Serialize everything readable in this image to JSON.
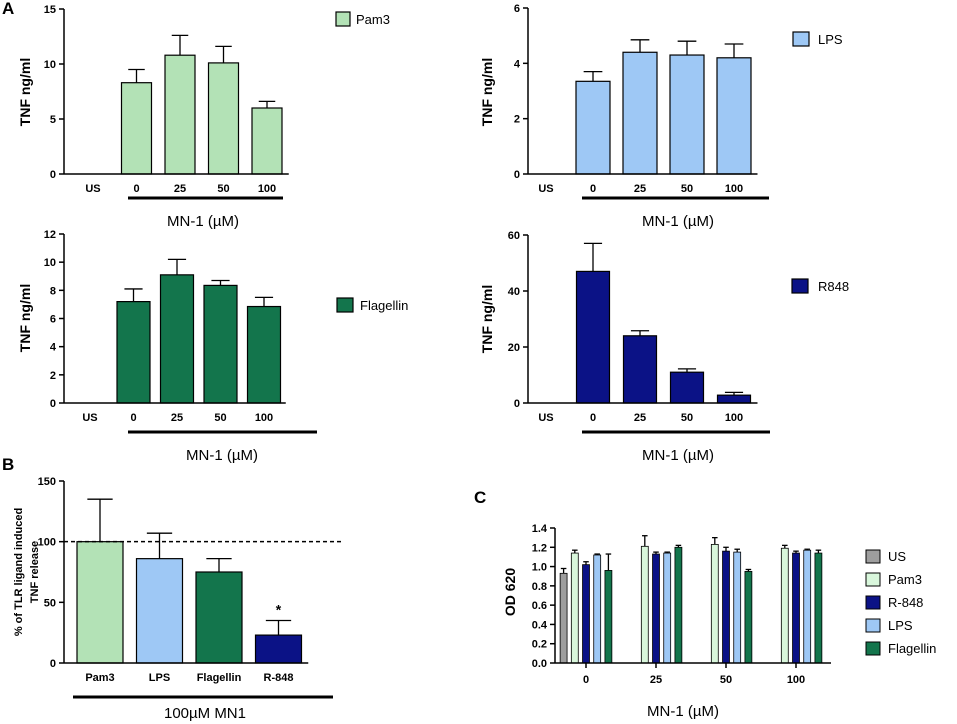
{
  "panel_labels": {
    "a": "A",
    "b": "B",
    "c": "C"
  },
  "colors": {
    "pam3": "#b3e2b6",
    "lps": "#9ec8f5",
    "flagellin": "#13754c",
    "r848": "#0b1286",
    "us": "#9e9e9e",
    "pam3_c": "#d9f7dc"
  },
  "chart_data": [
    {
      "id": "a1",
      "type": "bar",
      "title": "",
      "ylabel": "TNF ng/ml",
      "xlabel": "MN-1 (µM)",
      "legend": "Pam3",
      "color_key": "pam3",
      "categories": [
        "US",
        "0",
        "25",
        "50",
        "100"
      ],
      "values": [
        0,
        8.3,
        10.8,
        10.1,
        6.0
      ],
      "errors": [
        0,
        1.2,
        1.8,
        1.5,
        0.6
      ],
      "ylim": [
        0,
        15
      ],
      "yticks": [
        0,
        5,
        10,
        15
      ]
    },
    {
      "id": "a2",
      "type": "bar",
      "title": "",
      "ylabel": "TNF ng/ml",
      "xlabel": "MN-1 (µM)",
      "legend": "LPS",
      "color_key": "lps",
      "categories": [
        "US",
        "0",
        "25",
        "50",
        "100"
      ],
      "values": [
        0,
        3.35,
        4.4,
        4.3,
        4.2
      ],
      "errors": [
        0,
        0.35,
        0.45,
        0.5,
        0.5
      ],
      "ylim": [
        0,
        6
      ],
      "yticks": [
        0,
        2,
        4,
        6
      ]
    },
    {
      "id": "a3",
      "type": "bar",
      "title": "",
      "ylabel": "TNF ng/ml",
      "xlabel": "MN-1 (µM)",
      "legend": "Flagellin",
      "color_key": "flagellin",
      "categories": [
        "US",
        "0",
        "25",
        "50",
        "100"
      ],
      "values": [
        0,
        7.2,
        9.1,
        8.35,
        6.85
      ],
      "errors": [
        0,
        0.9,
        1.1,
        0.35,
        0.65
      ],
      "ylim": [
        0,
        12
      ],
      "yticks": [
        0,
        2,
        4,
        6,
        8,
        10,
        12
      ]
    },
    {
      "id": "a4",
      "type": "bar",
      "title": "",
      "ylabel": "TNF ng/ml",
      "xlabel": "MN-1 (µM)",
      "legend": "R848",
      "color_key": "r848",
      "categories": [
        "US",
        "0",
        "25",
        "50",
        "100"
      ],
      "values": [
        0,
        47,
        24,
        11,
        2.8
      ],
      "errors": [
        0,
        10,
        1.8,
        1.2,
        1.0
      ],
      "ylim": [
        0,
        60
      ],
      "yticks": [
        0,
        20,
        40,
        60
      ]
    },
    {
      "id": "b",
      "type": "bar",
      "title": "",
      "ylabel_lines": [
        "% of TLR ligand induced",
        "TNF release"
      ],
      "xlabel": "100µM MN1",
      "categories": [
        "Pam3",
        "LPS",
        "Flagellin",
        "R-848"
      ],
      "color_keys": [
        "pam3",
        "lps",
        "flagellin",
        "r848"
      ],
      "values": [
        100,
        86,
        75,
        23
      ],
      "errors": [
        35,
        21,
        11,
        12
      ],
      "annotations": [
        {
          "category": "R-848",
          "text": "*"
        }
      ],
      "reference_line": 100,
      "ylim": [
        0,
        150
      ],
      "yticks": [
        0,
        50,
        100,
        150
      ]
    },
    {
      "id": "c",
      "type": "bar",
      "title": "",
      "ylabel": "OD 620",
      "xlabel": "MN-1 (µM)",
      "categories": [
        "0",
        "25",
        "50",
        "100"
      ],
      "series": [
        {
          "name": "US",
          "color_key": "us",
          "values": [
            0.93,
            null,
            null,
            null
          ],
          "errors": [
            0.05,
            null,
            null,
            null
          ]
        },
        {
          "name": "Pam3",
          "color_key": "pam3_c",
          "values": [
            1.14,
            1.21,
            1.23,
            1.19
          ],
          "errors": [
            0.03,
            0.11,
            0.07,
            0.03
          ]
        },
        {
          "name": "R-848",
          "color_key": "r848",
          "values": [
            1.02,
            1.13,
            1.16,
            1.14
          ],
          "errors": [
            0.03,
            0.02,
            0.04,
            0.02
          ]
        },
        {
          "name": "LPS",
          "color_key": "lps",
          "values": [
            1.12,
            1.14,
            1.15,
            1.17
          ],
          "errors": [
            0.01,
            0.01,
            0.03,
            0.01
          ]
        },
        {
          "name": "Flagellin",
          "color_key": "flagellin",
          "values": [
            0.96,
            1.2,
            0.95,
            1.14
          ],
          "errors": [
            0.17,
            0.02,
            0.02,
            0.03
          ]
        }
      ],
      "legend_position": "right",
      "ylim": [
        0,
        1.4
      ],
      "yticks": [
        0.0,
        0.2,
        0.4,
        0.6,
        0.8,
        1.0,
        1.2,
        1.4
      ]
    }
  ]
}
